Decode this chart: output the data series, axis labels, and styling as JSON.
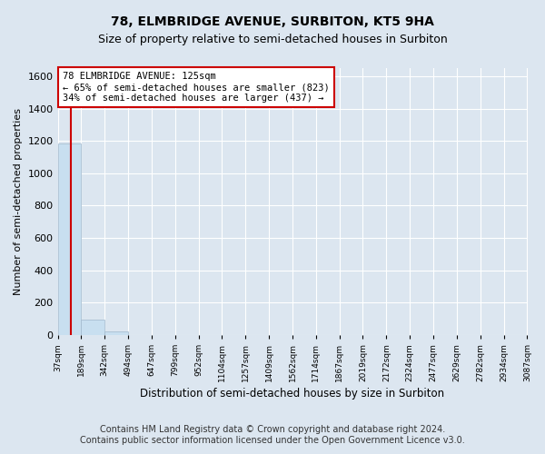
{
  "title1": "78, ELMBRIDGE AVENUE, SURBITON, KT5 9HA",
  "title2": "Size of property relative to semi-detached houses in Surbiton",
  "xlabel": "Distribution of semi-detached houses by size in Surbiton",
  "ylabel": "Number of semi-detached properties",
  "footnote1": "Contains HM Land Registry data © Crown copyright and database right 2024.",
  "footnote2": "Contains public sector information licensed under the Open Government Licence v3.0.",
  "bin_edges": [
    37,
    189,
    342,
    494,
    647,
    799,
    952,
    1104,
    1257,
    1409,
    1562,
    1714,
    1867,
    2019,
    2172,
    2324,
    2477,
    2629,
    2782,
    2934,
    3087
  ],
  "bin_labels": [
    "37sqm",
    "189sqm",
    "342sqm",
    "494sqm",
    "647sqm",
    "799sqm",
    "952sqm",
    "1104sqm",
    "1257sqm",
    "1409sqm",
    "1562sqm",
    "1714sqm",
    "1867sqm",
    "2019sqm",
    "2172sqm",
    "2324sqm",
    "2477sqm",
    "2629sqm",
    "2782sqm",
    "2934sqm",
    "3087sqm"
  ],
  "bar_heights": [
    1185,
    95,
    20,
    0,
    0,
    0,
    0,
    0,
    0,
    0,
    0,
    0,
    0,
    0,
    0,
    0,
    0,
    0,
    0,
    0
  ],
  "bar_color": "#c8dff0",
  "bar_edge_color": "#a0b8cc",
  "property_size": 125,
  "property_line_color": "#cc0000",
  "annotation_line1": "78 ELMBRIDGE AVENUE: 125sqm",
  "annotation_line2": "← 65% of semi-detached houses are smaller (823)",
  "annotation_line3": "34% of semi-detached houses are larger (437) →",
  "annotation_box_color": "#ffffff",
  "annotation_border_color": "#cc0000",
  "ylim": [
    0,
    1650
  ],
  "yticks": [
    0,
    200,
    400,
    600,
    800,
    1000,
    1200,
    1400,
    1600
  ],
  "background_color": "#dce6f0",
  "plot_bg_color": "#dce6f0",
  "grid_color": "#ffffff",
  "title1_fontsize": 10,
  "title2_fontsize": 9,
  "footnote_fontsize": 7
}
